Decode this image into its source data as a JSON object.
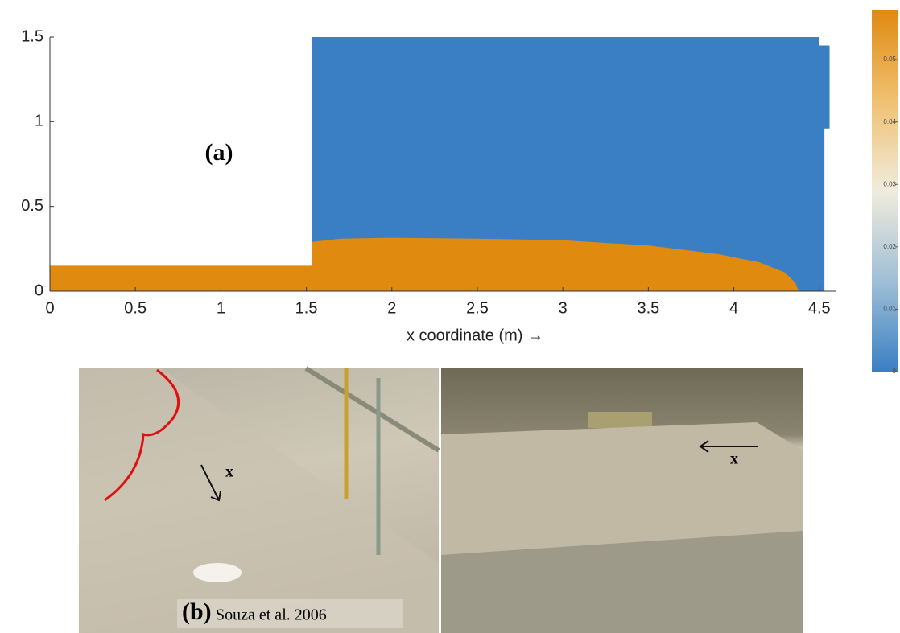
{
  "chart_data": {
    "type": "field",
    "panel_label": "(a)",
    "xlabel": "x coordinate (m) →",
    "xlim": [
      0,
      4.6
    ],
    "ylim": [
      0,
      1.5
    ],
    "xticks": [
      0,
      0.5,
      1,
      1.5,
      2,
      2.5,
      3,
      3.5,
      4,
      4.5
    ],
    "yticks": [
      0,
      0.5,
      1,
      1.5
    ],
    "fluid_x": [
      1.53,
      1.53,
      4.5,
      4.5,
      4.56,
      4.56,
      4.53,
      4.53
    ],
    "fluid_y": [
      0,
      1.5,
      1.5,
      1.45,
      1.45,
      0.96,
      0.96,
      0
    ],
    "fluid_color": "#3a7fc4",
    "sediment_x": [
      0,
      0,
      1.53,
      1.53,
      1.7,
      2,
      2.5,
      3,
      3.5,
      3.9,
      4.15,
      4.3,
      4.36,
      4.38,
      0
    ],
    "sediment_y": [
      0,
      0.15,
      0.15,
      0.29,
      0.31,
      0.315,
      0.31,
      0.3,
      0.27,
      0.22,
      0.17,
      0.11,
      0.05,
      0,
      0
    ],
    "sediment_color": "#e08a10",
    "colorbar": {
      "lim": [
        0,
        0.058
      ],
      "ticks": [
        0,
        0.01,
        0.02,
        0.03,
        0.04,
        0.05
      ],
      "colors": [
        "#3a7fc4",
        "#9fbfd6",
        "#f0ecdc",
        "#f0c070",
        "#e08a10"
      ]
    }
  },
  "photos": {
    "label": "(b)",
    "credit": "Souza et al. 2006",
    "left_axis": "x",
    "right_axis": "x"
  }
}
